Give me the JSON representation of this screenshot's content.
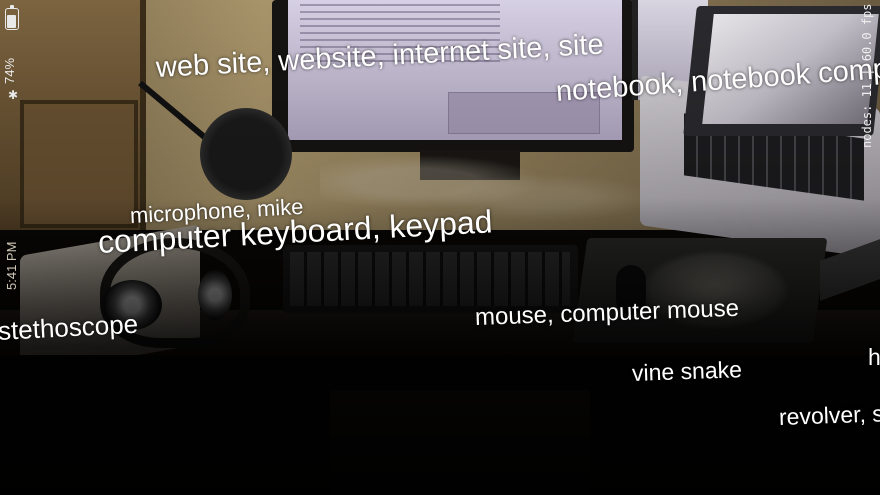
{
  "status_bar": {
    "battery_percent": "74%",
    "battery_level": 0.74,
    "bluetooth_icon": "bluetooth-icon",
    "time": "5:41 PM"
  },
  "debug_overlay": {
    "stats": "nodes: 11 | 60.0 fps"
  },
  "ar_labels": {
    "web_site": "web site, website, internet site, site",
    "notebook": "notebook, notebook computer",
    "microphone": "microphone, mike",
    "keyboard": "computer keyboard, keypad",
    "stethoscope": "stethoscope",
    "mouse": "mouse, computer mouse",
    "vine_snake": "vine snake",
    "revolver": "revolver, six-gun, six-shooter",
    "h_label": "h"
  },
  "colors": {
    "label_text": "#ffffff",
    "status_text": "#e8e8e8"
  }
}
